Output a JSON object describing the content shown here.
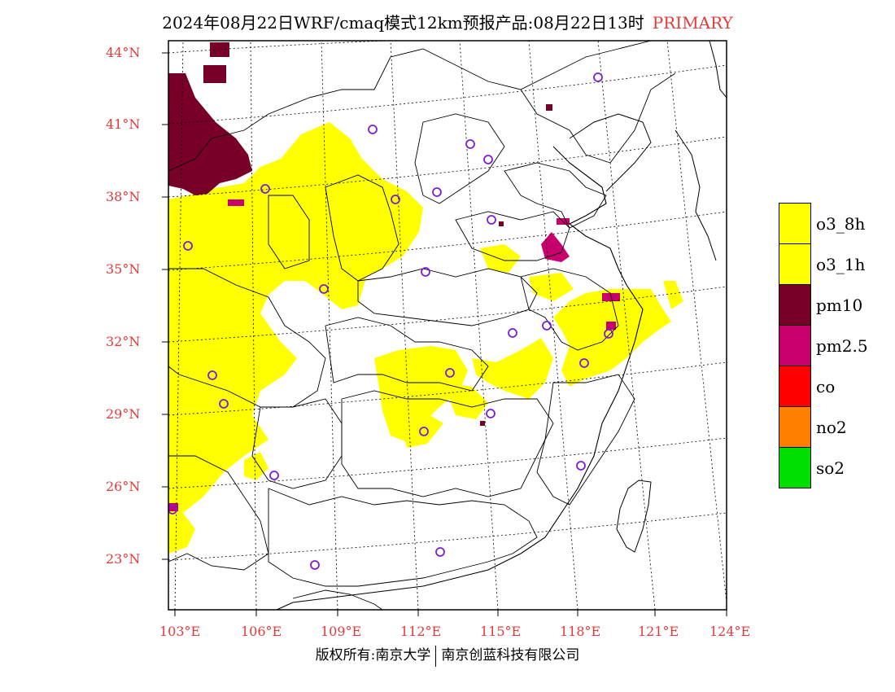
{
  "header": {
    "title": "2024年08月22日WRF/cmaq模式12km预报产品:08月22日13时",
    "tag": "PRIMARY"
  },
  "map": {
    "lat_labels": [
      "44°N",
      "41°N",
      "38°N",
      "35°N",
      "32°N",
      "29°N",
      "26°N",
      "23°N"
    ],
    "lon_labels": [
      "103°E",
      "106°E",
      "109°E",
      "112°E",
      "115°E",
      "118°E",
      "121°E",
      "124°E"
    ],
    "colors": {
      "o3": "#ffff00",
      "pm10": "#780028",
      "pm25": "#c8006e",
      "station_ring": "#7a1fd6",
      "border": "#000000"
    }
  },
  "legend": {
    "items": [
      {
        "label": "o3_8h",
        "color": "#ffff00"
      },
      {
        "label": "o3_1h",
        "color": "#ffff00"
      },
      {
        "label": "pm10",
        "color": "#780028"
      },
      {
        "label": "pm2.5",
        "color": "#c8006e"
      },
      {
        "label": "co",
        "color": "#ff0000"
      },
      {
        "label": "no2",
        "color": "#ff8000"
      },
      {
        "label": "so2",
        "color": "#00e000"
      }
    ]
  },
  "footer": {
    "left": "版权所有:南京大学",
    "right": "南京创蓝科技有限公司"
  }
}
